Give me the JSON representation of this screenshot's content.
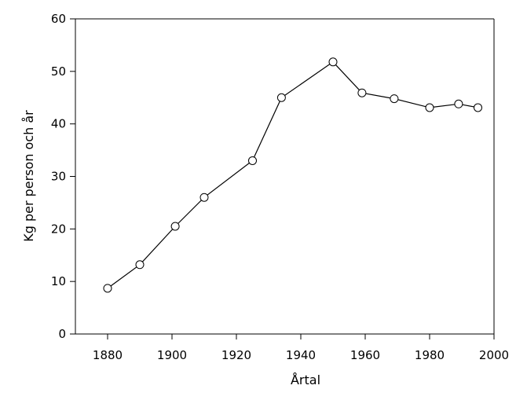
{
  "chart_data": {
    "type": "line",
    "title": "",
    "xlabel": "Årtal",
    "ylabel": "Kg per person och år",
    "xlim": [
      1870,
      2000
    ],
    "ylim": [
      0,
      60
    ],
    "xticks": [
      1880,
      1900,
      1920,
      1940,
      1960,
      1980,
      2000
    ],
    "yticks": [
      0,
      10,
      20,
      30,
      40,
      50,
      60
    ],
    "grid": false,
    "legend": "none",
    "line_color": "#000000",
    "marker": "open-circle",
    "series": [
      {
        "x": [
          1880,
          1890,
          1901,
          1910,
          1925,
          1934,
          1950,
          1959,
          1969,
          1980,
          1989,
          1995
        ],
        "y": [
          8.7,
          13.2,
          20.5,
          26.0,
          33.0,
          45.0,
          51.8,
          45.9,
          44.8,
          43.1,
          43.8,
          43.1
        ]
      }
    ]
  }
}
